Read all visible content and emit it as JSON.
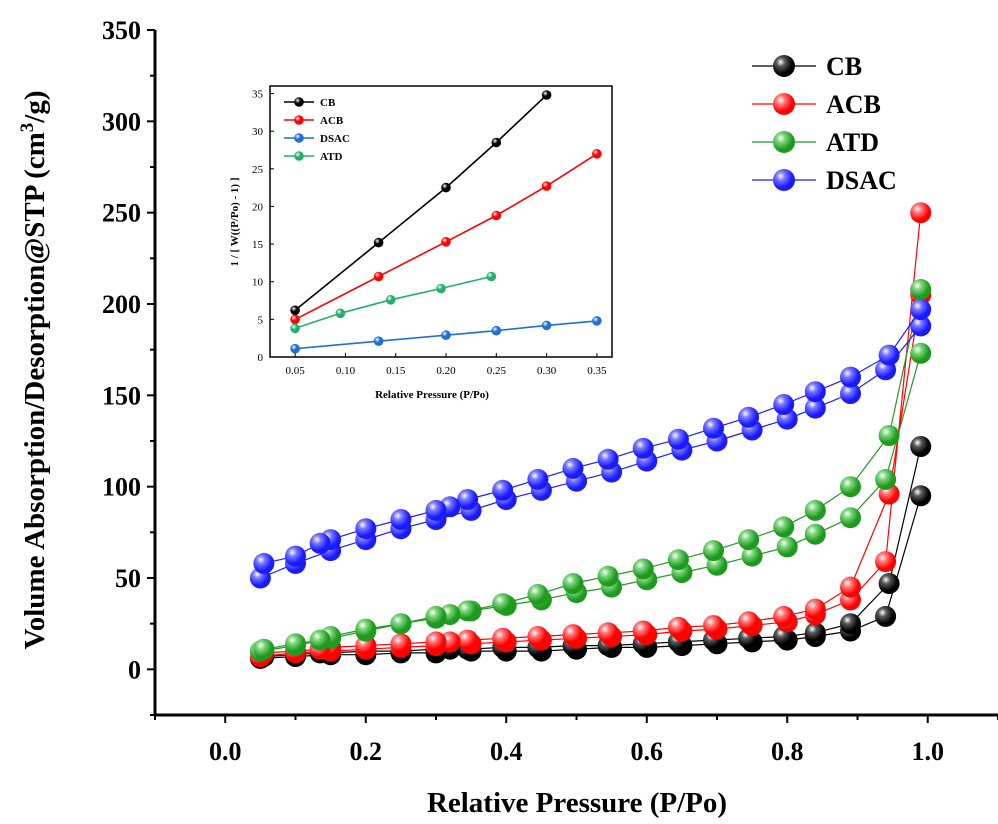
{
  "chart_data": [
    {
      "type": "scatter",
      "xlabel": "Relative Pressure (P/Po)",
      "ylabel": "Volume Absorption/Desorption@STP (cm",
      "ylabel_sup": "3",
      "ylabel_tail": "/g)",
      "xlim": [
        -0.1,
        1.1
      ],
      "ylim": [
        -25,
        350
      ],
      "xticks": [
        "0.0",
        "0.2",
        "0.4",
        "0.6",
        "0.8",
        "1.0"
      ],
      "yticks": [
        "0",
        "50",
        "100",
        "150",
        "200",
        "250",
        "300",
        "350"
      ],
      "legend_position": "top-right",
      "series": [
        {
          "name": "CB",
          "color": "#000000",
          "shade": "#5a5a5a",
          "adsorption": {
            "x": [
              0.05,
              0.1,
              0.15,
              0.2,
              0.25,
              0.3,
              0.35,
              0.4,
              0.45,
              0.5,
              0.55,
              0.6,
              0.65,
              0.7,
              0.75,
              0.8,
              0.84,
              0.89,
              0.94,
              0.99
            ],
            "y": [
              6,
              7,
              8,
              8,
              9,
              9,
              10,
              10,
              10,
              11,
              12,
              12,
              13,
              14,
              15,
              16,
              18,
              21,
              29,
              95
            ]
          },
          "desorption": {
            "x": [
              0.99,
              0.945,
              0.89,
              0.84,
              0.795,
              0.745,
              0.695,
              0.645,
              0.595,
              0.545,
              0.495,
              0.445,
              0.395,
              0.345,
              0.32,
              0.3,
              0.25,
              0.2,
              0.15,
              0.135,
              0.1,
              0.055
            ],
            "y": [
              122,
              47,
              25,
              20,
              18,
              17,
              16,
              15,
              14,
              13,
              13,
              12,
              12,
              11,
              11,
              11,
              10,
              10,
              9,
              9,
              8,
              7
            ]
          }
        },
        {
          "name": "ACB",
          "color": "#ff0000",
          "shade": "#ff7a7a",
          "adsorption": {
            "x": [
              0.05,
              0.1,
              0.15,
              0.2,
              0.25,
              0.3,
              0.35,
              0.4,
              0.45,
              0.5,
              0.55,
              0.6,
              0.65,
              0.7,
              0.75,
              0.8,
              0.84,
              0.89,
              0.94,
              0.99
            ],
            "y": [
              7,
              9,
              10,
              11,
              12,
              13,
              14,
              15,
              16,
              17,
              18,
              19,
              21,
              22,
              24,
              26,
              30,
              38,
              59,
              250
            ]
          },
          "desorption": {
            "x": [
              0.99,
              0.945,
              0.89,
              0.84,
              0.795,
              0.745,
              0.695,
              0.645,
              0.595,
              0.545,
              0.495,
              0.445,
              0.395,
              0.345,
              0.32,
              0.3,
              0.25,
              0.2,
              0.15,
              0.135,
              0.1,
              0.055
            ],
            "y": [
              205,
              96,
              45,
              33,
              29,
              26,
              24,
              23,
              21,
              20,
              19,
              18,
              17,
              16,
              15,
              15,
              14,
              13,
              12,
              11,
              10,
              9
            ]
          }
        },
        {
          "name": "ATD",
          "color": "#1e9a1e",
          "shade": "#7ed67e",
          "adsorption": {
            "x": [
              0.05,
              0.1,
              0.15,
              0.2,
              0.25,
              0.3,
              0.35,
              0.4,
              0.45,
              0.5,
              0.55,
              0.6,
              0.65,
              0.7,
              0.75,
              0.8,
              0.84,
              0.89,
              0.94,
              0.99
            ],
            "y": [
              10,
              13,
              17,
              21,
              25,
              28,
              32,
              35,
              38,
              42,
              45,
              49,
              53,
              57,
              62,
              67,
              74,
              83,
              104,
              173
            ]
          },
          "desorption": {
            "x": [
              0.99,
              0.945,
              0.89,
              0.84,
              0.795,
              0.745,
              0.695,
              0.645,
              0.595,
              0.545,
              0.495,
              0.445,
              0.395,
              0.345,
              0.32,
              0.3,
              0.25,
              0.2,
              0.15,
              0.135,
              0.1,
              0.055
            ],
            "y": [
              208,
              128,
              100,
              87,
              78,
              71,
              65,
              60,
              55,
              51,
              47,
              41,
              36,
              32,
              30,
              29,
              25,
              22,
              18,
              16,
              14,
              11
            ]
          }
        },
        {
          "name": "DSAC",
          "color": "#1a1aff",
          "shade": "#7a7aff",
          "adsorption": {
            "x": [
              0.05,
              0.1,
              0.15,
              0.2,
              0.25,
              0.3,
              0.35,
              0.4,
              0.45,
              0.5,
              0.55,
              0.6,
              0.65,
              0.7,
              0.75,
              0.8,
              0.84,
              0.89,
              0.94,
              0.99
            ],
            "y": [
              50,
              58,
              65,
              71,
              77,
              82,
              87,
              93,
              98,
              103,
              108,
              114,
              120,
              125,
              131,
              137,
              143,
              151,
              164,
              188
            ]
          },
          "desorption": {
            "x": [
              0.99,
              0.945,
              0.89,
              0.84,
              0.795,
              0.745,
              0.695,
              0.645,
              0.595,
              0.545,
              0.495,
              0.445,
              0.395,
              0.345,
              0.32,
              0.3,
              0.25,
              0.2,
              0.15,
              0.135,
              0.1,
              0.055
            ],
            "y": [
              197,
              172,
              160,
              152,
              145,
              138,
              132,
              126,
              121,
              115,
              110,
              104,
              98,
              93,
              89,
              87,
              82,
              77,
              71,
              69,
              62,
              58
            ]
          }
        }
      ]
    },
    {
      "type": "line",
      "xlabel": "Relative Pressure (P/Po)",
      "ylabel": "1 / [ W((P/Po) - 1) ]",
      "xlim": [
        0.025,
        0.365
      ],
      "ylim": [
        0,
        36
      ],
      "xticks": [
        "0.05",
        "0.10",
        "0.15",
        "0.20",
        "0.25",
        "0.30",
        "0.35"
      ],
      "yticks": [
        "0",
        "5",
        "10",
        "15",
        "20",
        "25",
        "30",
        "35"
      ],
      "legend_position": "top-left",
      "series": [
        {
          "name": "CB",
          "color": "#000000",
          "x": [
            0.05,
            0.133,
            0.2,
            0.25,
            0.3
          ],
          "y": [
            6.2,
            15.2,
            22.5,
            28.5,
            34.8
          ]
        },
        {
          "name": "ACB",
          "color": "#ff0000",
          "x": [
            0.05,
            0.133,
            0.2,
            0.25,
            0.3,
            0.35
          ],
          "y": [
            5.0,
            10.7,
            15.3,
            18.8,
            22.7,
            27.0
          ]
        },
        {
          "name": "DSAC",
          "color": "#1f6fd6",
          "x": [
            0.05,
            0.133,
            0.2,
            0.25,
            0.3,
            0.35
          ],
          "y": [
            1.1,
            2.1,
            2.9,
            3.5,
            4.2,
            4.8
          ]
        },
        {
          "name": "ATD",
          "color": "#22b06a",
          "x": [
            0.05,
            0.095,
            0.145,
            0.195,
            0.245
          ],
          "y": [
            3.8,
            5.8,
            7.6,
            9.1,
            10.7
          ]
        }
      ]
    }
  ]
}
